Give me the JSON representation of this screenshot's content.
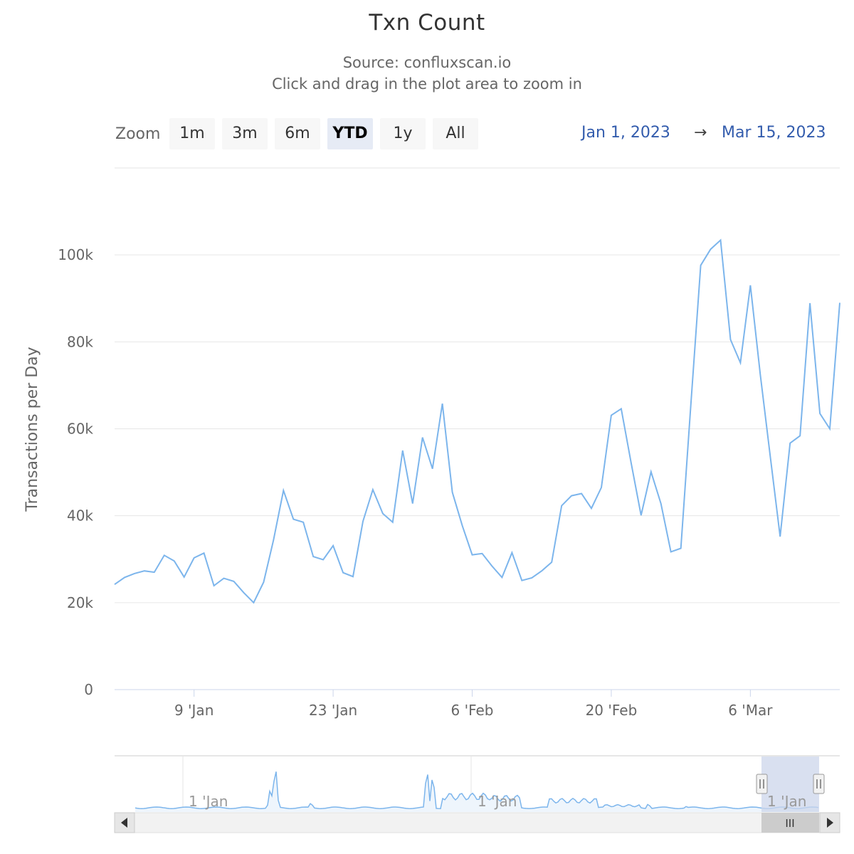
{
  "header": {
    "title": "Txn Count",
    "subtitle_source": "Source: confluxscan.io",
    "subtitle_hint": "Click and drag in the plot area to zoom in"
  },
  "range_selector": {
    "zoom_label": "Zoom",
    "buttons": [
      "1m",
      "3m",
      "6m",
      "YTD",
      "1y",
      "All"
    ],
    "selected": "YTD",
    "from_date": "Jan 1, 2023",
    "arrow": "→",
    "to_date": "Mar 15, 2023"
  },
  "navigator": {
    "labels": [
      "1 'Jan",
      "1 'Jan",
      "1 'Jan"
    ],
    "handle_glyph": "||",
    "scrollbar_grip": "III"
  },
  "colors": {
    "series": "#7cb5ec",
    "grid": "#e6e6e6",
    "navigator_mask": "#ccd6eb",
    "range_text": "#335cad"
  },
  "chart_data": {
    "type": "line",
    "title": "Txn Count",
    "subtitle": "Source: confluxscan.io",
    "ylabel": "Transactions per Day",
    "xlabel": "",
    "ylim": [
      0,
      120000
    ],
    "yticks": [
      0,
      20000,
      40000,
      60000,
      80000,
      100000
    ],
    "ytick_labels": [
      "0",
      "20k",
      "40k",
      "60k",
      "80k",
      "100k"
    ],
    "xlim": [
      "2023-01-01",
      "2023-03-15"
    ],
    "xtick_dates": [
      "2023-01-09",
      "2023-01-23",
      "2023-02-06",
      "2023-02-20",
      "2023-03-06"
    ],
    "xtick_labels": [
      "9 'Jan",
      "23 'Jan",
      "6 'Feb",
      "20 'Feb",
      "6 'Mar"
    ],
    "grid": true,
    "legend": "none",
    "series": [
      {
        "x": [
          "2023-01-01",
          "2023-01-02",
          "2023-01-03",
          "2023-01-04",
          "2023-01-05",
          "2023-01-06",
          "2023-01-07",
          "2023-01-08",
          "2023-01-09",
          "2023-01-10",
          "2023-01-11",
          "2023-01-12",
          "2023-01-13",
          "2023-01-14",
          "2023-01-15",
          "2023-01-16",
          "2023-01-17",
          "2023-01-18",
          "2023-01-19",
          "2023-01-20",
          "2023-01-21",
          "2023-01-22",
          "2023-01-23",
          "2023-01-24",
          "2023-01-25",
          "2023-01-26",
          "2023-01-27",
          "2023-01-28",
          "2023-01-29",
          "2023-01-30",
          "2023-01-31",
          "2023-02-01",
          "2023-02-02",
          "2023-02-03",
          "2023-02-04",
          "2023-02-05",
          "2023-02-06",
          "2023-02-07",
          "2023-02-08",
          "2023-02-09",
          "2023-02-10",
          "2023-02-11",
          "2023-02-12",
          "2023-02-13",
          "2023-02-14",
          "2023-02-15",
          "2023-02-16",
          "2023-02-17",
          "2023-02-18",
          "2023-02-19",
          "2023-02-20",
          "2023-02-21",
          "2023-02-22",
          "2023-02-23",
          "2023-02-24",
          "2023-02-25",
          "2023-02-26",
          "2023-02-27",
          "2023-02-28",
          "2023-03-01",
          "2023-03-02",
          "2023-03-03",
          "2023-03-04",
          "2023-03-05",
          "2023-03-06",
          "2023-03-07",
          "2023-03-08",
          "2023-03-09",
          "2023-03-10",
          "2023-03-11",
          "2023-03-12",
          "2023-03-13",
          "2023-03-14",
          "2023-03-15"
        ],
        "values": [
          24200,
          25800,
          26700,
          27300,
          27000,
          30900,
          29600,
          25900,
          30300,
          31400,
          23900,
          25600,
          24900,
          22300,
          20000,
          24700,
          34400,
          45800,
          39200,
          38500,
          30600,
          29900,
          33100,
          26900,
          26000,
          38700,
          46000,
          40500,
          38500,
          55000,
          42800,
          58000,
          50800,
          65800,
          45400,
          37700,
          31000,
          31300,
          28400,
          25800,
          31500,
          25100,
          25700,
          27300,
          29300,
          42300,
          44600,
          45100,
          41700,
          46500,
          63100,
          64600,
          52100,
          40100,
          50100,
          42800,
          31700,
          32500,
          65200,
          97600,
          101300,
          103400,
          80500,
          75200,
          93000,
          72500,
          53700,
          35200,
          56700,
          58400,
          88900,
          63500,
          60000,
          89000
        ]
      }
    ]
  }
}
